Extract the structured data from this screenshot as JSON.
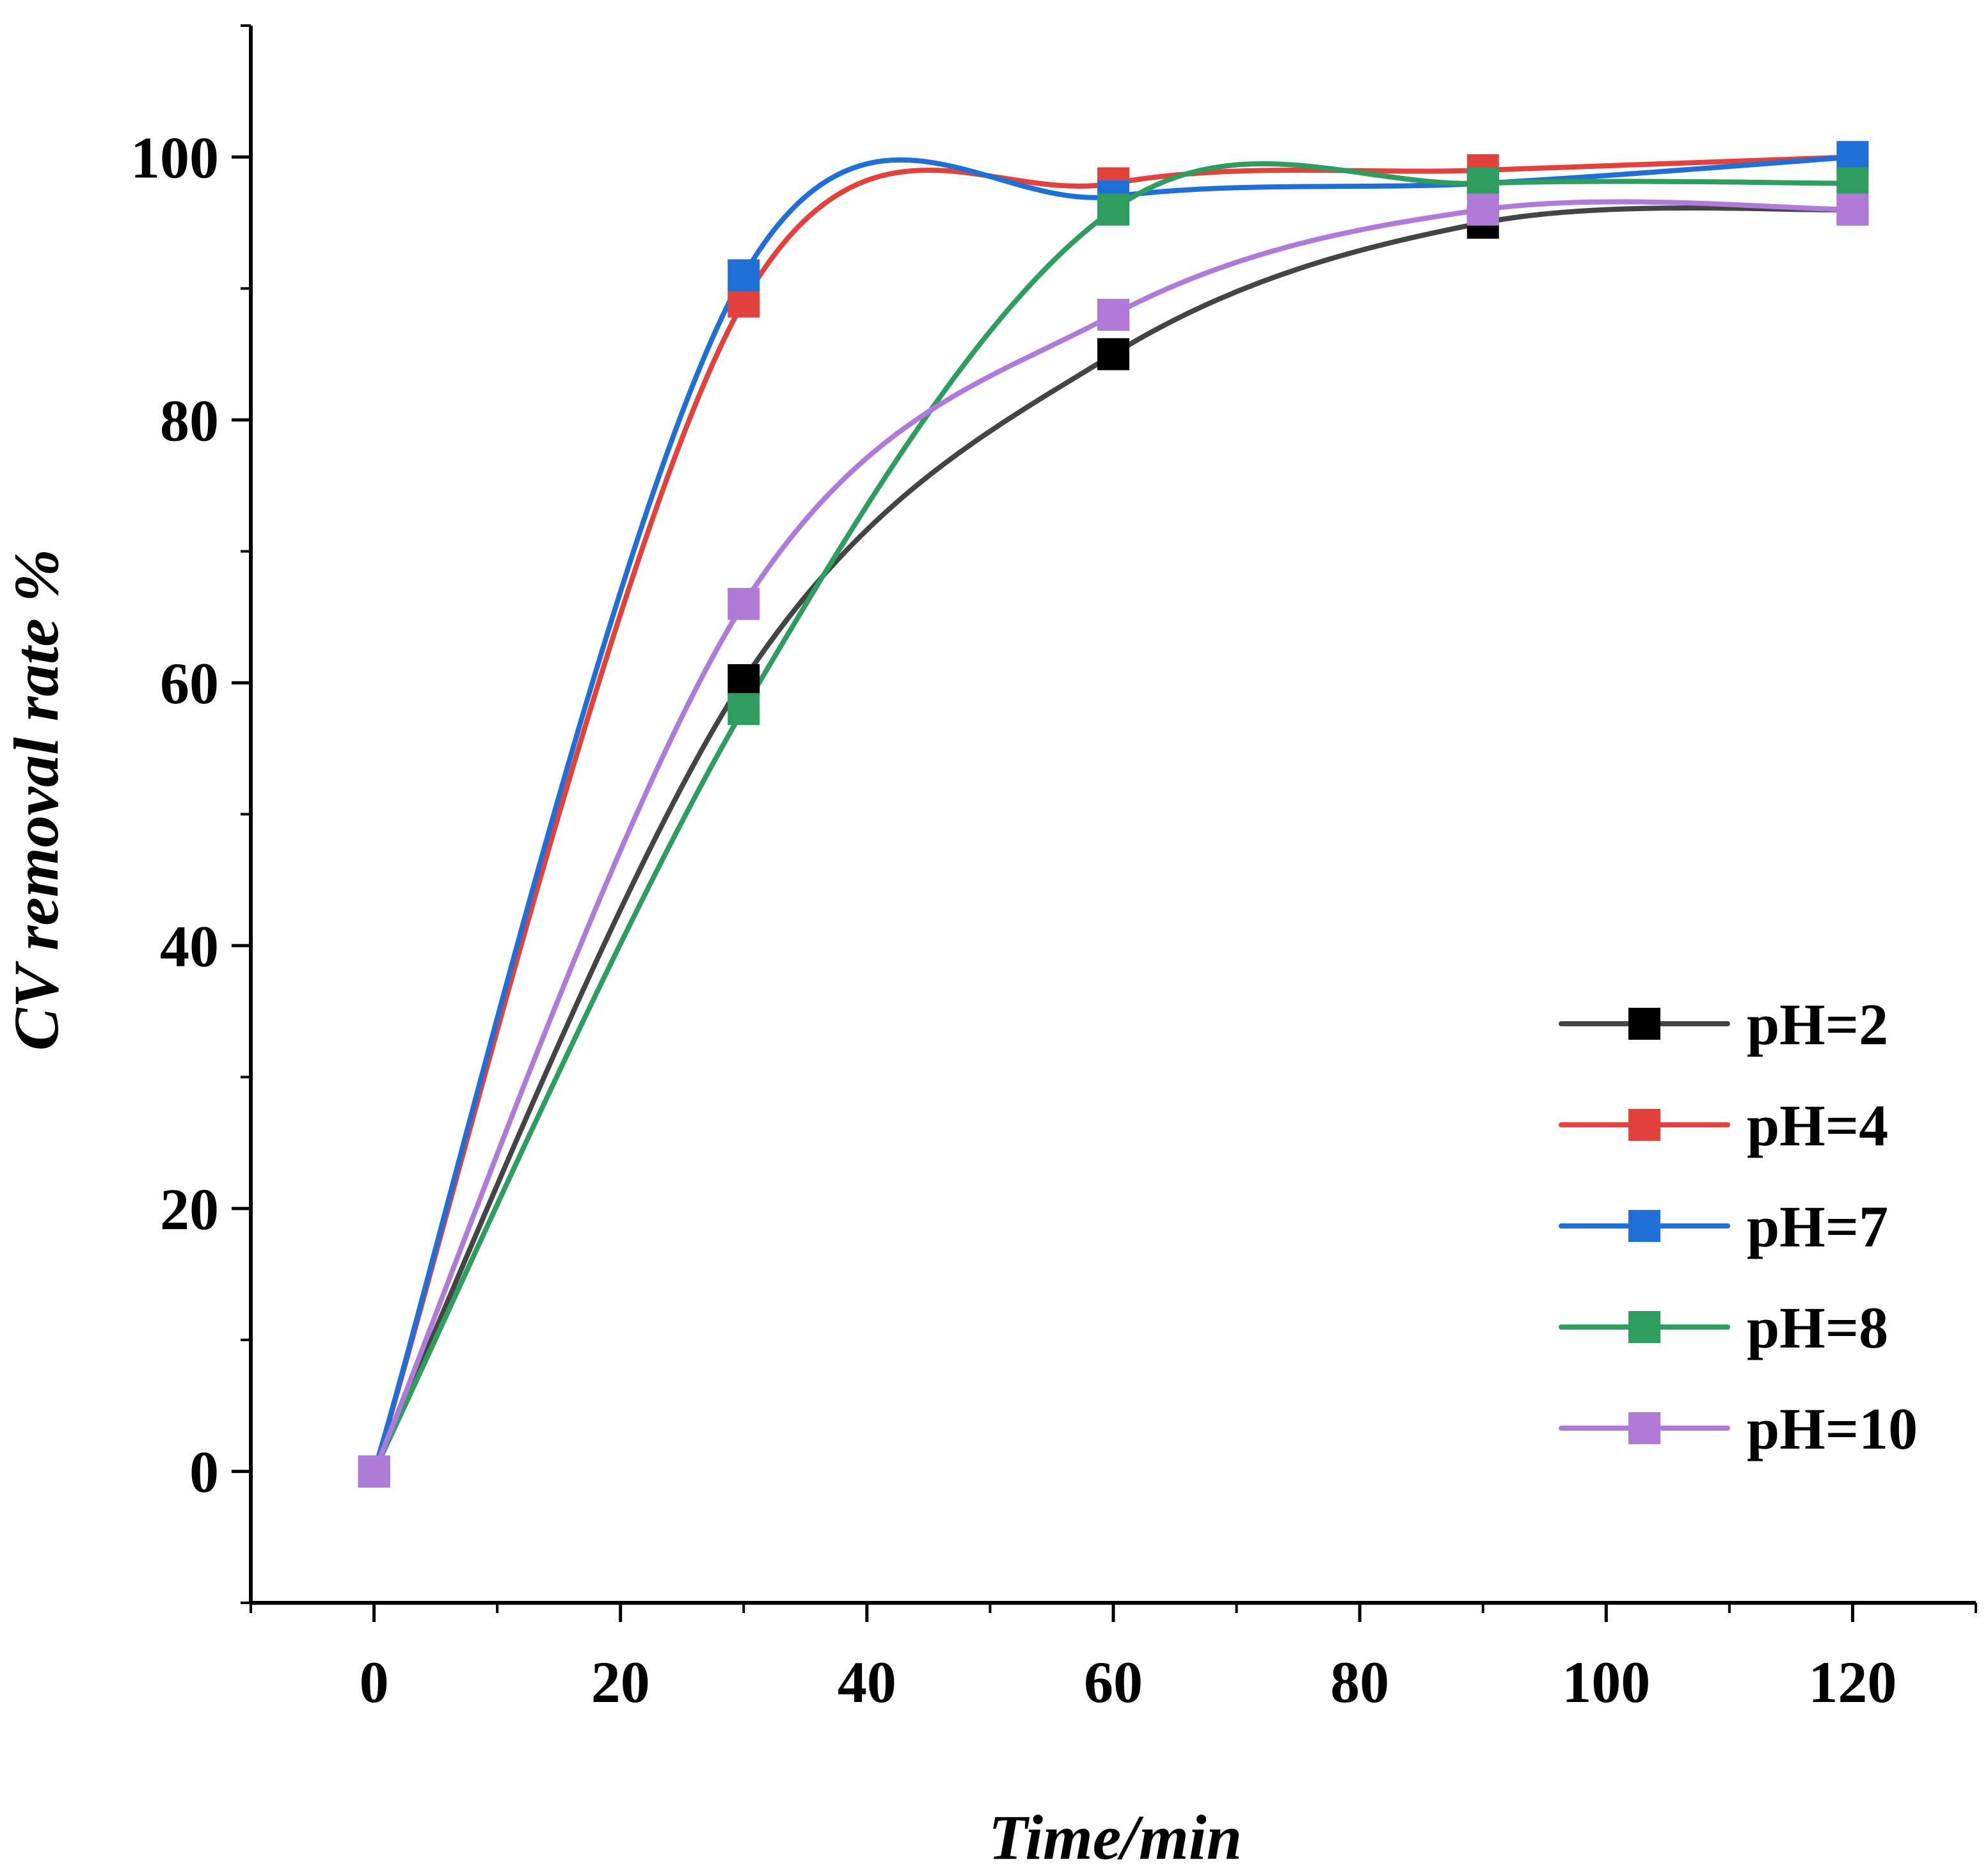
{
  "chart_data": {
    "type": "line",
    "title": "",
    "xlabel": "Time/min",
    "ylabel": "CV removal rate %",
    "xlim": [
      -10,
      130
    ],
    "ylim": [
      -10,
      110
    ],
    "xticks": [
      0,
      20,
      40,
      60,
      80,
      100,
      120
    ],
    "yticks": [
      0,
      20,
      40,
      60,
      80,
      100
    ],
    "xtick_labels": [
      "0",
      "20",
      "40",
      "60",
      "80",
      "100",
      "120"
    ],
    "ytick_labels": [
      "0",
      "20",
      "40",
      "60",
      "80",
      "100"
    ],
    "x_minor_ticks": [
      -10,
      10,
      30,
      50,
      70,
      90,
      110,
      130
    ],
    "y_minor_ticks": [
      -10,
      10,
      30,
      50,
      70,
      90,
      110
    ],
    "grid": false,
    "legend_position": "lower-right",
    "x": [
      0,
      30,
      60,
      90,
      120
    ],
    "series": [
      {
        "name": "pH=2",
        "color": "#000000",
        "line_color": "#444444",
        "values": [
          0,
          60.2,
          85.0,
          95.0,
          96.0
        ]
      },
      {
        "name": "pH=4",
        "color": "#e2413c",
        "line_color": "#e2413c",
        "values": [
          0,
          89.0,
          98.0,
          99.0,
          100.0
        ]
      },
      {
        "name": "pH=7",
        "color": "#1f6fd6",
        "line_color": "#1f6fd6",
        "values": [
          0,
          91.0,
          97.0,
          98.0,
          100.0
        ]
      },
      {
        "name": "pH=8",
        "color": "#2e9e5e",
        "line_color": "#2e9e5e",
        "values": [
          0,
          58.0,
          96.0,
          98.0,
          98.0
        ]
      },
      {
        "name": "pH=10",
        "color": "#b07ad8",
        "line_color": "#b07ad8",
        "values": [
          0,
          66.0,
          88.0,
          96.0,
          96.0
        ]
      }
    ]
  }
}
